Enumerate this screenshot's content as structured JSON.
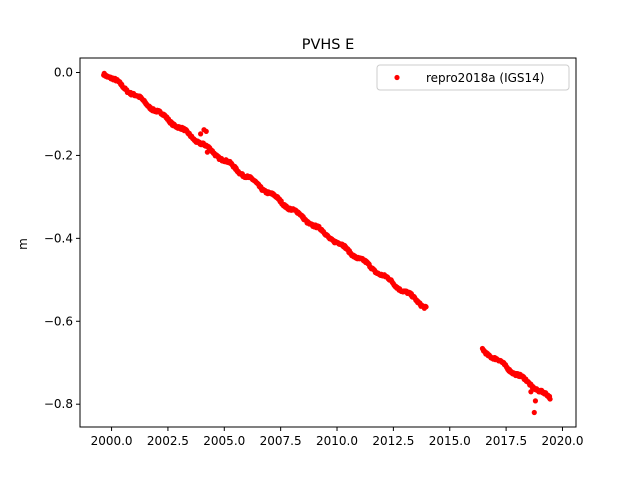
{
  "chart_data": {
    "type": "scatter",
    "title": "PVHS E",
    "xlabel": "",
    "ylabel": "m",
    "xlim": [
      1998.6,
      2020.6
    ],
    "ylim": [
      -0.855,
      0.035
    ],
    "x_ticks": [
      "2000.0",
      "2002.5",
      "2005.0",
      "2007.5",
      "2010.0",
      "2012.5",
      "2015.0",
      "2017.5",
      "2020.0"
    ],
    "y_ticks": [
      "0.0",
      "−0.2",
      "−0.4",
      "−0.6",
      "−0.8"
    ],
    "grid": false,
    "legend_position": "top-right",
    "series": [
      {
        "name": "repro2018a (IGS14)",
        "color": "#ff0000",
        "marker": "circle",
        "segments": [
          {
            "x_start": 1999.65,
            "x_end": 2013.95,
            "y_start": 0.0,
            "y_end": -0.566
          },
          {
            "x_start": 2016.45,
            "x_end": 2019.45,
            "y_start": -0.668,
            "y_end": -0.786
          }
        ],
        "outliers": [
          {
            "x": 2003.95,
            "y": -0.148
          },
          {
            "x": 2004.1,
            "y": -0.138
          },
          {
            "x": 2004.2,
            "y": -0.142
          },
          {
            "x": 2004.05,
            "y": -0.17
          },
          {
            "x": 2004.25,
            "y": -0.192
          },
          {
            "x": 2018.8,
            "y": -0.792
          },
          {
            "x": 2018.75,
            "y": -0.82
          },
          {
            "x": 2018.6,
            "y": -0.77
          }
        ]
      }
    ]
  }
}
